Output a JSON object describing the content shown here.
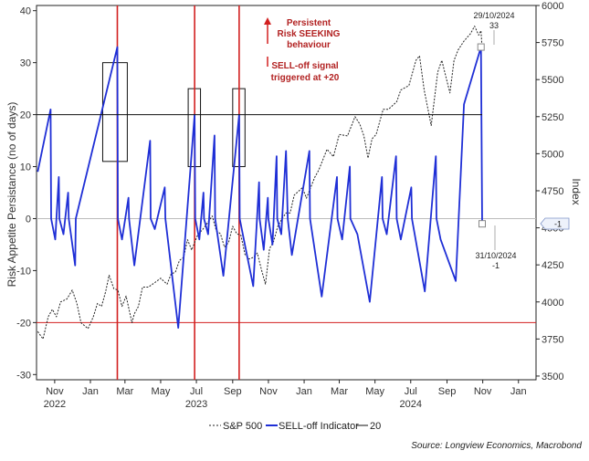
{
  "chart_data": {
    "type": "line",
    "y_left": {
      "label": "Risk Appetite Persistance (no of days)",
      "ylim": [
        -31,
        41
      ],
      "ticks": [
        -30,
        -20,
        -10,
        0,
        10,
        20,
        30,
        40
      ]
    },
    "y_right": {
      "label": "Index",
      "ylim": [
        3475,
        6000
      ],
      "ticks": [
        3500,
        3750,
        4000,
        4250,
        4500,
        4750,
        5000,
        5250,
        5500,
        5750,
        6000
      ]
    },
    "x_axis": {
      "range": [
        "2022-10-01",
        "2025-01-31"
      ],
      "ticks": [
        {
          "date": "2022-11-01",
          "label": "Nov",
          "year": "2022"
        },
        {
          "date": "2023-01-01",
          "label": "Jan",
          "year": ""
        },
        {
          "date": "2023-03-01",
          "label": "Mar",
          "year": ""
        },
        {
          "date": "2023-05-01",
          "label": "May",
          "year": ""
        },
        {
          "date": "2023-07-01",
          "label": "Jul",
          "year": "2023"
        },
        {
          "date": "2023-09-01",
          "label": "Sep",
          "year": ""
        },
        {
          "date": "2023-11-01",
          "label": "Nov",
          "year": ""
        },
        {
          "date": "2024-01-01",
          "label": "Jan",
          "year": ""
        },
        {
          "date": "2024-03-01",
          "label": "Mar",
          "year": ""
        },
        {
          "date": "2024-05-01",
          "label": "May",
          "year": ""
        },
        {
          "date": "2024-07-01",
          "label": "Jul",
          "year": "2024"
        },
        {
          "date": "2024-09-01",
          "label": "Sep",
          "year": ""
        },
        {
          "date": "2024-11-01",
          "label": "Nov",
          "year": ""
        },
        {
          "date": "2025-01-01",
          "label": "Jan",
          "year": ""
        }
      ]
    },
    "series": [
      {
        "name": "S&P 500",
        "axis": "right",
        "style": "dashed",
        "color": "#222222",
        "points": [
          [
            "2022-10-03",
            3800
          ],
          [
            "2022-10-12",
            3750
          ],
          [
            "2022-10-21",
            3900
          ],
          [
            "2022-10-28",
            3950
          ],
          [
            "2022-11-04",
            3900
          ],
          [
            "2022-11-11",
            4000
          ],
          [
            "2022-11-22",
            4020
          ],
          [
            "2022-12-01",
            4080
          ],
          [
            "2022-12-09",
            3990
          ],
          [
            "2022-12-16",
            3860
          ],
          [
            "2022-12-28",
            3820
          ],
          [
            "2023-01-06",
            3900
          ],
          [
            "2023-01-13",
            3990
          ],
          [
            "2023-01-20",
            3970
          ],
          [
            "2023-01-27",
            4070
          ],
          [
            "2023-02-02",
            4180
          ],
          [
            "2023-02-10",
            4090
          ],
          [
            "2023-02-17",
            4080
          ],
          [
            "2023-02-24",
            3970
          ],
          [
            "2023-03-03",
            4040
          ],
          [
            "2023-03-13",
            3860
          ],
          [
            "2023-03-17",
            3920
          ],
          [
            "2023-03-24",
            3970
          ],
          [
            "2023-03-31",
            4100
          ],
          [
            "2023-04-10",
            4100
          ],
          [
            "2023-04-21",
            4130
          ],
          [
            "2023-05-01",
            4160
          ],
          [
            "2023-05-12",
            4120
          ],
          [
            "2023-05-19",
            4190
          ],
          [
            "2023-05-26",
            4200
          ],
          [
            "2023-06-02",
            4280
          ],
          [
            "2023-06-09",
            4300
          ],
          [
            "2023-06-16",
            4420
          ],
          [
            "2023-06-23",
            4350
          ],
          [
            "2023-07-03",
            4450
          ],
          [
            "2023-07-14",
            4500
          ],
          [
            "2023-07-28",
            4580
          ],
          [
            "2023-08-04",
            4480
          ],
          [
            "2023-08-11",
            4460
          ],
          [
            "2023-08-18",
            4370
          ],
          [
            "2023-08-25",
            4400
          ],
          [
            "2023-09-01",
            4510
          ],
          [
            "2023-09-08",
            4460
          ],
          [
            "2023-09-15",
            4450
          ],
          [
            "2023-09-22",
            4320
          ],
          [
            "2023-09-29",
            4290
          ],
          [
            "2023-10-06",
            4300
          ],
          [
            "2023-10-13",
            4330
          ],
          [
            "2023-10-20",
            4220
          ],
          [
            "2023-10-27",
            4120
          ],
          [
            "2023-11-03",
            4360
          ],
          [
            "2023-11-10",
            4410
          ],
          [
            "2023-11-17",
            4510
          ],
          [
            "2023-11-24",
            4560
          ],
          [
            "2023-12-01",
            4600
          ],
          [
            "2023-12-08",
            4600
          ],
          [
            "2023-12-15",
            4720
          ],
          [
            "2023-12-29",
            4770
          ],
          [
            "2024-01-05",
            4700
          ],
          [
            "2024-01-19",
            4840
          ],
          [
            "2024-01-26",
            4890
          ],
          [
            "2024-02-02",
            4960
          ],
          [
            "2024-02-09",
            5030
          ],
          [
            "2024-02-20",
            4980
          ],
          [
            "2024-03-01",
            5130
          ],
          [
            "2024-03-15",
            5120
          ],
          [
            "2024-03-28",
            5250
          ],
          [
            "2024-04-05",
            5200
          ],
          [
            "2024-04-12",
            5120
          ],
          [
            "2024-04-19",
            4970
          ],
          [
            "2024-04-26",
            5100
          ],
          [
            "2024-05-03",
            5130
          ],
          [
            "2024-05-15",
            5300
          ],
          [
            "2024-05-24",
            5300
          ],
          [
            "2024-06-07",
            5350
          ],
          [
            "2024-06-14",
            5430
          ],
          [
            "2024-06-28",
            5460
          ],
          [
            "2024-07-10",
            5630
          ],
          [
            "2024-07-16",
            5660
          ],
          [
            "2024-07-24",
            5430
          ],
          [
            "2024-08-05",
            5190
          ],
          [
            "2024-08-16",
            5550
          ],
          [
            "2024-08-23",
            5630
          ],
          [
            "2024-09-06",
            5410
          ],
          [
            "2024-09-13",
            5630
          ],
          [
            "2024-09-20",
            5700
          ],
          [
            "2024-09-30",
            5760
          ],
          [
            "2024-10-11",
            5810
          ],
          [
            "2024-10-18",
            5860
          ],
          [
            "2024-10-25",
            5800
          ],
          [
            "2024-10-29",
            5830
          ],
          [
            "2024-10-31",
            5705
          ]
        ]
      },
      {
        "name": "SELL-off Indicator",
        "axis": "left",
        "style": "solid",
        "color": "#1f2fd6",
        "points": [
          [
            "2022-10-03",
            9
          ],
          [
            "2022-10-25",
            21
          ],
          [
            "2022-10-26",
            0
          ],
          [
            "2022-11-02",
            -4
          ],
          [
            "2022-11-08",
            8
          ],
          [
            "2022-11-09",
            0
          ],
          [
            "2022-11-16",
            -3
          ],
          [
            "2022-11-24",
            5
          ],
          [
            "2022-11-25",
            0
          ],
          [
            "2022-12-06",
            -9
          ],
          [
            "2022-12-07",
            0
          ],
          [
            "2023-02-16",
            33
          ],
          [
            "2023-02-17",
            0
          ],
          [
            "2023-02-24",
            -4
          ],
          [
            "2023-03-07",
            4
          ],
          [
            "2023-03-08",
            0
          ],
          [
            "2023-03-17",
            -9
          ],
          [
            "2023-04-13",
            15
          ],
          [
            "2023-04-14",
            0
          ],
          [
            "2023-04-21",
            -2
          ],
          [
            "2023-05-08",
            6
          ],
          [
            "2023-05-09",
            0
          ],
          [
            "2023-05-31",
            -21
          ],
          [
            "2023-06-28",
            20
          ],
          [
            "2023-06-29",
            0
          ],
          [
            "2023-07-06",
            -4
          ],
          [
            "2023-07-13",
            5
          ],
          [
            "2023-07-14",
            0
          ],
          [
            "2023-07-21",
            -3
          ],
          [
            "2023-08-01",
            16
          ],
          [
            "2023-08-02",
            0
          ],
          [
            "2023-08-16",
            -11
          ],
          [
            "2023-09-12",
            20
          ],
          [
            "2023-09-13",
            0
          ],
          [
            "2023-09-20",
            -4
          ],
          [
            "2023-10-06",
            -13
          ],
          [
            "2023-10-16",
            7
          ],
          [
            "2023-10-17",
            0
          ],
          [
            "2023-10-24",
            -6
          ],
          [
            "2023-10-31",
            4
          ],
          [
            "2023-11-01",
            0
          ],
          [
            "2023-11-08",
            -5
          ],
          [
            "2023-11-15",
            12
          ],
          [
            "2023-11-16",
            0
          ],
          [
            "2023-11-23",
            -3
          ],
          [
            "2023-12-01",
            13
          ],
          [
            "2023-12-04",
            0
          ],
          [
            "2023-12-11",
            -7
          ],
          [
            "2024-01-10",
            13
          ],
          [
            "2024-01-11",
            0
          ],
          [
            "2024-01-31",
            -15
          ],
          [
            "2024-02-26",
            8
          ],
          [
            "2024-02-27",
            0
          ],
          [
            "2024-03-06",
            -4
          ],
          [
            "2024-03-19",
            10
          ],
          [
            "2024-03-20",
            0
          ],
          [
            "2024-04-01",
            -3
          ],
          [
            "2024-04-22",
            -16
          ],
          [
            "2024-05-13",
            8
          ],
          [
            "2024-05-14",
            0
          ],
          [
            "2024-05-21",
            -3
          ],
          [
            "2024-06-06",
            12
          ],
          [
            "2024-06-07",
            0
          ],
          [
            "2024-06-14",
            -4
          ],
          [
            "2024-07-02",
            6
          ],
          [
            "2024-07-03",
            0
          ],
          [
            "2024-07-25",
            -14
          ],
          [
            "2024-08-13",
            12
          ],
          [
            "2024-08-14",
            0
          ],
          [
            "2024-08-21",
            -4
          ],
          [
            "2024-09-16",
            -12
          ],
          [
            "2024-09-30",
            22
          ],
          [
            "2024-10-29",
            33
          ],
          [
            "2024-10-31",
            -1
          ]
        ]
      },
      {
        "name": "20",
        "axis": "left",
        "style": "solid",
        "color": "#111111",
        "points": [
          [
            "2022-10-01",
            20
          ],
          [
            "2024-10-31",
            20
          ]
        ]
      }
    ],
    "reference_lines": [
      {
        "axis": "left",
        "value": -20,
        "color": "#d22020"
      },
      {
        "axis": "left",
        "value": 0,
        "color": "#bbbbbb"
      }
    ],
    "signal_lines": [
      "2023-02-16",
      "2023-06-28",
      "2023-09-12"
    ],
    "signal_boxes": [
      {
        "x0": "2023-01-22",
        "x1": "2023-03-05",
        "y0": 11,
        "y1": 30
      },
      {
        "x0": "2023-06-17",
        "x1": "2023-07-08",
        "y0": 10,
        "y1": 25
      },
      {
        "x0": "2023-09-01",
        "x1": "2023-09-22",
        "y0": 10,
        "y1": 25
      }
    ],
    "annotations": {
      "red_line1": "Persistent",
      "red_line2": "Risk SEEKING",
      "red_line3": "behaviour",
      "red_line4": "SELL-off signal",
      "red_line5": "triggered at +20",
      "top_date": "29/10/2024",
      "top_value": "33",
      "bottom_date": "31/10/2024",
      "bottom_value": "-1",
      "right_tag": "-1"
    },
    "legend_position": "bottom-center",
    "grid": false
  },
  "labels": {
    "ylabel_left": "Risk Appetite Persistance (no of days)",
    "ylabel_right": "Index",
    "legend_sp": "S&P 500",
    "legend_sell": "SELL-off Indicator",
    "legend_20": "20",
    "source": "Source: Longview Economics, Macrobond"
  },
  "colors": {
    "indicator": "#1f2fd6",
    "sp500": "#222222",
    "signal": "#d22020",
    "threshold": "#111111",
    "annotation": "#b22222"
  }
}
